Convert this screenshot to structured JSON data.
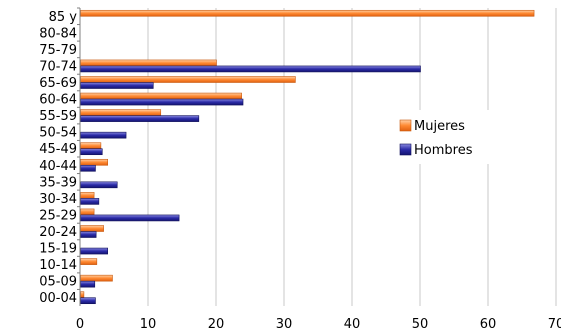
{
  "chart_data": {
    "type": "bar",
    "orientation": "horizontal",
    "categories": [
      "85 y",
      "80-84",
      "75-79",
      "70-74",
      "65-69",
      "60-64",
      "55-59",
      "50-54",
      "45-49",
      "40-44",
      "35-39",
      "30-34",
      "25-29",
      "20-24",
      "15-19",
      "10-14",
      "05-09",
      "00-04"
    ],
    "series": [
      {
        "name": "Mujeres",
        "color": "#ff7f27",
        "values": [
          66.7,
          0,
          0,
          20.0,
          31.6,
          23.7,
          11.8,
          0,
          3.0,
          4.0,
          0,
          2.0,
          2.0,
          3.4,
          0,
          2.4,
          4.7,
          0.5
        ]
      },
      {
        "name": "Hombres",
        "color": "#1f1f8f",
        "values": [
          0,
          0,
          0,
          50.0,
          10.7,
          23.9,
          17.4,
          6.7,
          3.2,
          2.2,
          5.4,
          2.7,
          14.5,
          2.3,
          4.0,
          0,
          2.1,
          2.2
        ]
      }
    ],
    "xlim": [
      0,
      70
    ],
    "xticks": [
      0,
      10,
      20,
      30,
      40,
      50,
      60,
      70
    ],
    "grid": "vertical",
    "legend_position": "right"
  }
}
